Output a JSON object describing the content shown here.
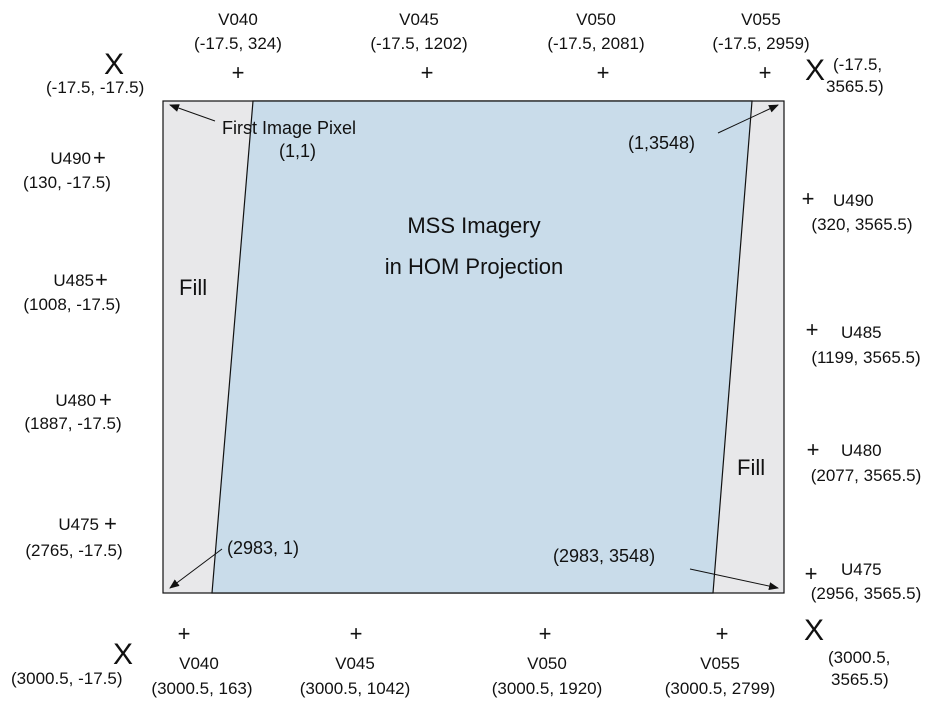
{
  "colors": {
    "frame_fill": "#e8e8ea",
    "imagery_fill": "#c9dcea",
    "stroke": "#111111"
  },
  "title_lines": [
    "MSS Imagery",
    "in HOM Projection"
  ],
  "fill_label": "Fill",
  "first_pixel_label": "First Image Pixel",
  "pixel_corners": {
    "top_left": "(1,1)",
    "top_right": "(1,3548)",
    "bottom_left": "(2983, 1)",
    "bottom_right": "(2983, 3548)"
  },
  "corner_marker": "X",
  "point_marker": "+",
  "corners": {
    "top_left": "(-17.5, -17.5)",
    "top_right": [
      "(-17.5,",
      "3565.5)"
    ],
    "bottom_left": "(3000.5, -17.5)",
    "bottom_right": [
      "(3000.5,",
      "3565.5)"
    ]
  },
  "top_points": [
    {
      "name": "V040",
      "coord": "(-17.5, 324)"
    },
    {
      "name": "V045",
      "coord": "(-17.5, 1202)"
    },
    {
      "name": "V050",
      "coord": "(-17.5, 2081)"
    },
    {
      "name": "V055",
      "coord": "(-17.5, 2959)"
    }
  ],
  "bottom_points": [
    {
      "name": "V040",
      "coord": "(3000.5, 163)"
    },
    {
      "name": "V045",
      "coord": "(3000.5, 1042)"
    },
    {
      "name": "V050",
      "coord": "(3000.5, 1920)"
    },
    {
      "name": "V055",
      "coord": "(3000.5, 2799)"
    }
  ],
  "left_points": [
    {
      "name": "U490",
      "coord": "(130, -17.5)"
    },
    {
      "name": "U485",
      "coord": "(1008, -17.5)"
    },
    {
      "name": "U480",
      "coord": "(1887, -17.5)"
    },
    {
      "name": "U475",
      "coord": "(2765, -17.5)"
    }
  ],
  "right_points": [
    {
      "name": "U490",
      "coord": "(320, 3565.5)"
    },
    {
      "name": "U485",
      "coord": "(1199, 3565.5)"
    },
    {
      "name": "U480",
      "coord": "(2077, 3565.5)"
    },
    {
      "name": "U475",
      "coord": "(2956, 3565.5)"
    }
  ]
}
